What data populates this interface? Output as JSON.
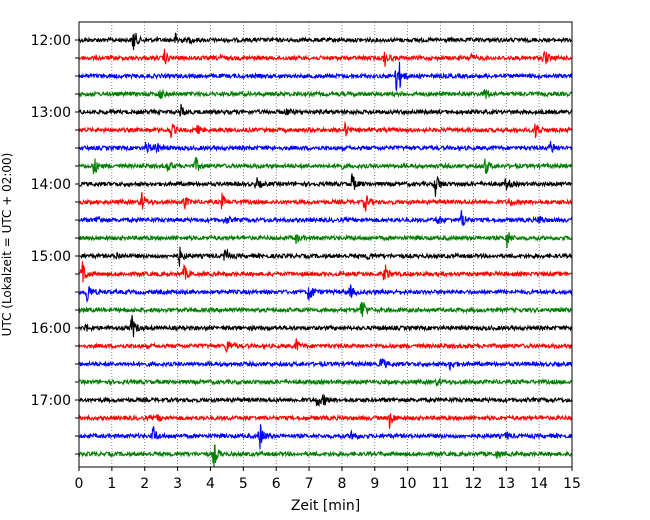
{
  "chart_data": {
    "type": "line",
    "xlabel": "Zeit  [min]",
    "ylabel": "UTC (Lokalzeit = UTC + 02:00)",
    "xlim": [
      0,
      15
    ],
    "x_ticks": [
      0,
      1,
      2,
      3,
      4,
      5,
      6,
      7,
      8,
      9,
      10,
      11,
      12,
      13,
      14,
      15
    ],
    "y_tick_labels": [
      "12:00",
      "13:00",
      "14:00",
      "15:00",
      "16:00",
      "17:00"
    ],
    "grid": "vertical-dotted",
    "trace_colors": [
      "#000000",
      "#ff0000",
      "#0000ff",
      "#008000"
    ],
    "traces": [
      {
        "start": "12:00",
        "events": [
          [
            1.65,
            1.0
          ],
          [
            2.95,
            0.5
          ],
          [
            3.35,
            0.2
          ]
        ]
      },
      {
        "start": "12:15",
        "events": [
          [
            2.6,
            0.6
          ],
          [
            4.25,
            0.3
          ],
          [
            9.3,
            0.6
          ],
          [
            11.9,
            0.35
          ],
          [
            14.15,
            0.75
          ]
        ]
      },
      {
        "start": "12:30",
        "events": [
          [
            9.65,
            1.2
          ],
          [
            9.75,
            0.6
          ]
        ]
      },
      {
        "start": "12:45",
        "events": [
          [
            2.45,
            0.45
          ],
          [
            12.35,
            0.5
          ]
        ]
      },
      {
        "start": "13:00",
        "events": [
          [
            3.1,
            0.5
          ],
          [
            6.3,
            0.25
          ]
        ]
      },
      {
        "start": "13:15",
        "events": [
          [
            2.8,
            0.6
          ],
          [
            3.6,
            0.3
          ],
          [
            8.1,
            0.5
          ],
          [
            13.9,
            0.75
          ]
        ]
      },
      {
        "start": "13:30",
        "events": [
          [
            2.05,
            0.6
          ],
          [
            2.35,
            0.4
          ],
          [
            14.35,
            0.6
          ]
        ]
      },
      {
        "start": "13:45",
        "events": [
          [
            0.45,
            0.75
          ],
          [
            2.7,
            0.5
          ],
          [
            3.55,
            0.6
          ],
          [
            7.9,
            0.35
          ],
          [
            12.35,
            0.8
          ]
        ]
      },
      {
        "start": "14:00",
        "events": [
          [
            5.4,
            0.45
          ],
          [
            8.3,
            0.8
          ],
          [
            10.85,
            1.0
          ],
          [
            13.0,
            0.55
          ]
        ]
      },
      {
        "start": "14:15",
        "events": [
          [
            1.9,
            0.8
          ],
          [
            3.2,
            0.5
          ],
          [
            4.35,
            0.6
          ],
          [
            8.7,
            0.75
          ],
          [
            13.1,
            0.35
          ]
        ]
      },
      {
        "start": "14:30",
        "events": [
          [
            0.55,
            0.4
          ],
          [
            4.45,
            0.35
          ],
          [
            10.9,
            0.45
          ],
          [
            11.65,
            0.8
          ],
          [
            14.0,
            0.4
          ]
        ]
      },
      {
        "start": "14:45",
        "events": [
          [
            6.6,
            0.35
          ],
          [
            13.0,
            0.9
          ]
        ]
      },
      {
        "start": "15:00",
        "events": [
          [
            1.15,
            0.25
          ],
          [
            3.05,
            0.75
          ],
          [
            4.45,
            0.65
          ],
          [
            8.8,
            0.3
          ]
        ]
      },
      {
        "start": "15:15",
        "events": [
          [
            0.1,
            1.0
          ],
          [
            3.2,
            0.6
          ],
          [
            9.3,
            0.8
          ]
        ]
      },
      {
        "start": "15:30",
        "events": [
          [
            0.25,
            0.9
          ],
          [
            7.0,
            0.9
          ],
          [
            8.25,
            0.5
          ]
        ]
      },
      {
        "start": "15:45",
        "events": [
          [
            8.6,
            1.1
          ]
        ]
      },
      {
        "start": "16:00",
        "events": [
          [
            1.6,
            1.1
          ],
          [
            0.2,
            0.3
          ]
        ]
      },
      {
        "start": "16:15",
        "events": [
          [
            4.5,
            0.6
          ],
          [
            6.6,
            0.55
          ]
        ]
      },
      {
        "start": "16:30",
        "events": [
          [
            9.2,
            0.6
          ],
          [
            11.3,
            0.45
          ]
        ]
      },
      {
        "start": "16:45",
        "events": [
          [
            10.9,
            0.3
          ]
        ]
      },
      {
        "start": "17:00",
        "events": [
          [
            7.25,
            0.55
          ],
          [
            7.45,
            0.35
          ]
        ]
      },
      {
        "start": "17:15",
        "events": [
          [
            9.45,
            0.75
          ],
          [
            2.4,
            0.25
          ]
        ]
      },
      {
        "start": "17:30",
        "events": [
          [
            2.25,
            0.8
          ],
          [
            5.5,
            1.1
          ],
          [
            8.3,
            0.5
          ],
          [
            13.0,
            0.3
          ]
        ]
      },
      {
        "start": "17:45",
        "events": [
          [
            4.1,
            1.0
          ],
          [
            12.7,
            0.25
          ]
        ]
      }
    ]
  }
}
